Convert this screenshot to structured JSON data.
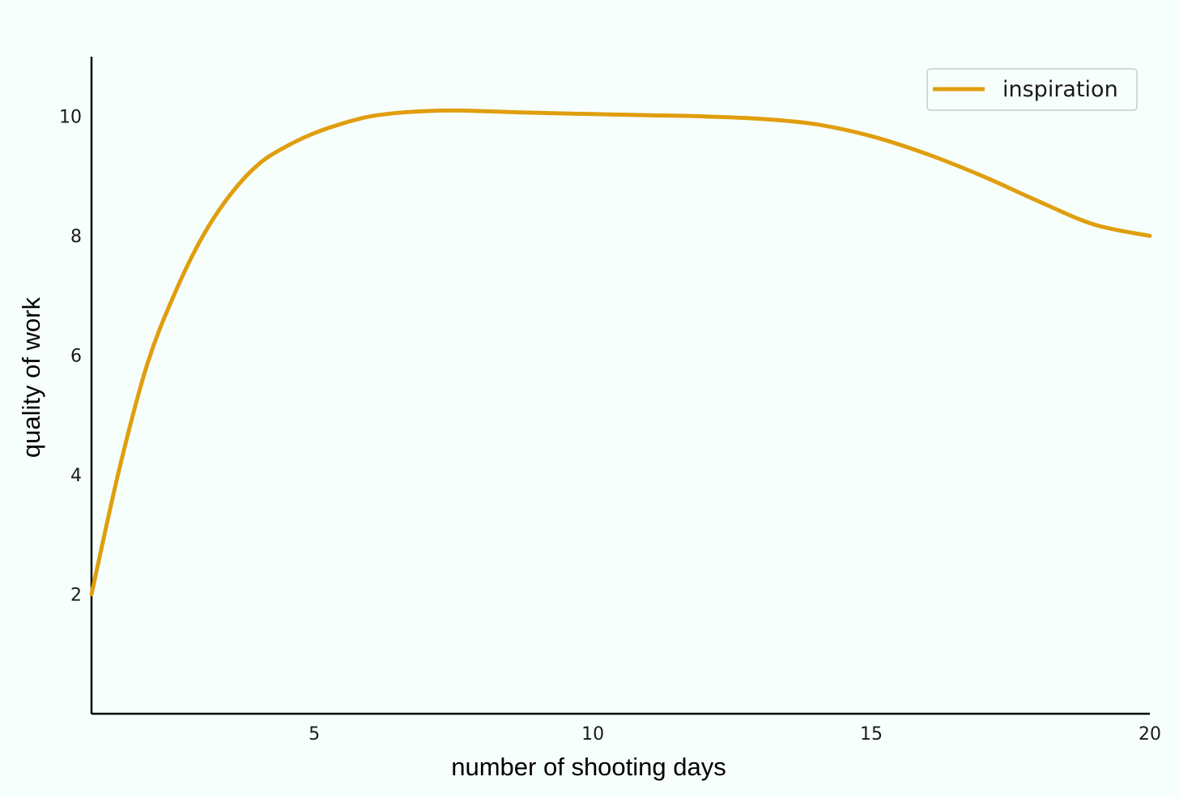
{
  "chart_data": {
    "type": "line",
    "title": "",
    "xlabel": "number of shooting days",
    "ylabel": "quality of work",
    "xlim": [
      1,
      20
    ],
    "ylim": [
      0,
      11
    ],
    "xticks": [
      {
        "value": 5,
        "label": "5"
      },
      {
        "value": 10,
        "label": "10"
      },
      {
        "value": 15,
        "label": "15"
      },
      {
        "value": 20,
        "label": "20"
      }
    ],
    "yticks": [
      {
        "value": 2,
        "label": "2"
      },
      {
        "value": 4,
        "label": "4"
      },
      {
        "value": 6,
        "label": "6"
      },
      {
        "value": 8,
        "label": "8"
      },
      {
        "value": 10,
        "label": "10"
      }
    ],
    "grid": false,
    "legend_position": "top-right",
    "series": [
      {
        "name": "inspiration",
        "color": "#E09E0E",
        "x": [
          1,
          1.5,
          2,
          2.5,
          3,
          3.5,
          4,
          4.5,
          5,
          5.5,
          6,
          6.5,
          7,
          7.5,
          8,
          9,
          10,
          11,
          12,
          13,
          14,
          15,
          16,
          17,
          18,
          19,
          20
        ],
        "y": [
          2.0,
          4.1,
          5.85,
          7.05,
          8.0,
          8.7,
          9.2,
          9.5,
          9.72,
          9.88,
          10.0,
          10.06,
          10.09,
          10.1,
          10.09,
          10.06,
          10.04,
          10.02,
          10.0,
          9.96,
          9.87,
          9.67,
          9.37,
          9.0,
          8.58,
          8.19,
          8.0
        ]
      }
    ]
  }
}
